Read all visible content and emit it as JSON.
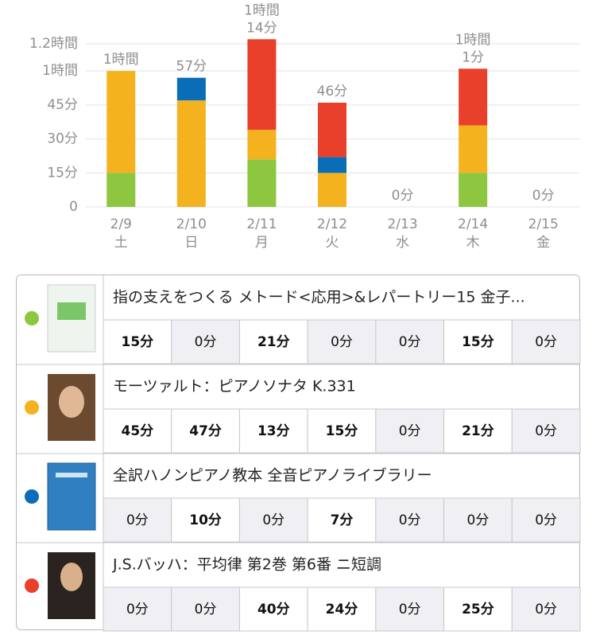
{
  "chart_data": {
    "type": "stacked-bar",
    "categories": [
      "2/9",
      "2/10",
      "2/11",
      "2/12",
      "2/13",
      "2/14",
      "2/15"
    ],
    "weekdays": [
      "土",
      "日",
      "月",
      "火",
      "水",
      "木",
      "金"
    ],
    "ylim": [
      0,
      72
    ],
    "yticks": [
      0,
      {
        "value": 15,
        "label": "15分"
      },
      {
        "value": 30,
        "label": "30分"
      },
      {
        "value": 45,
        "label": "45分"
      },
      {
        "value": 60,
        "label": "1時間"
      },
      {
        "value": 72,
        "label": "1.2時間"
      }
    ],
    "grid": true,
    "totals": [
      60,
      57,
      74,
      46,
      0,
      61,
      0
    ],
    "total_labels": [
      [
        "1時間"
      ],
      [
        "57分"
      ],
      [
        "1時間",
        "14分"
      ],
      [
        "46分"
      ],
      [
        "0分"
      ],
      [
        "1時間",
        "1分"
      ],
      [
        "0分"
      ]
    ],
    "series": [
      {
        "name": "指の支えをつくる メトード<応用>&レパートリー15 金子...",
        "color": "#8dc63f",
        "values": [
          15,
          0,
          21,
          0,
          0,
          15,
          0
        ],
        "value_labels": [
          "15分",
          "0分",
          "21分",
          "0分",
          "0分",
          "15分",
          "0分"
        ]
      },
      {
        "name": "モーツァルト：ピアノソナタ K.331",
        "color": "#f5b21f",
        "values": [
          45,
          47,
          13,
          15,
          0,
          21,
          0
        ],
        "value_labels": [
          "45分",
          "47分",
          "13分",
          "15分",
          "0分",
          "21分",
          "0分"
        ]
      },
      {
        "name": "全訳ハノンピアノ教本  全音ピアノライブラリー",
        "color": "#0a6db8",
        "values": [
          0,
          10,
          0,
          7,
          0,
          0,
          0
        ],
        "value_labels": [
          "0分",
          "10分",
          "0分",
          "7分",
          "0分",
          "0分",
          "0分"
        ]
      },
      {
        "name": "J.S.バッハ：平均律 第2巻 第6番 ニ短調",
        "color": "#e8402a",
        "values": [
          0,
          0,
          40,
          24,
          0,
          25,
          0
        ],
        "value_labels": [
          "0分",
          "0分",
          "40分",
          "24分",
          "0分",
          "25分",
          "0分"
        ]
      }
    ]
  }
}
